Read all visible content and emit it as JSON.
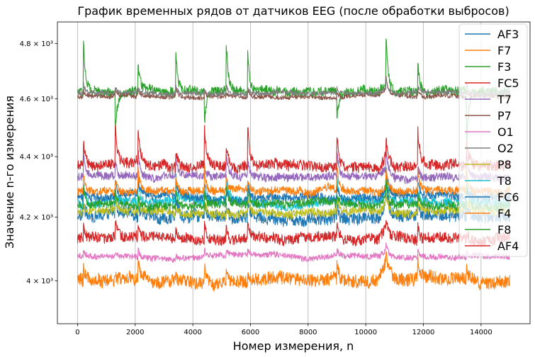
{
  "chart_data": {
    "type": "line",
    "title": "График временных рядов от датчиков EEG (после обработки выбросов)",
    "xlabel": "Номер измерения, n",
    "ylabel": "Значение n-го измерения",
    "xlim": [
      -700,
      15700
    ],
    "ylim": [
      3870,
      4880
    ],
    "y_scale": "log",
    "grid": "vertical",
    "legend_position": "top-right",
    "x_ticks": [
      0,
      2000,
      4000,
      6000,
      8000,
      10000,
      12000,
      14000
    ],
    "x_tick_labels": [
      "0",
      "2000",
      "4000",
      "6000",
      "8000",
      "10000",
      "12000",
      "14000"
    ],
    "y_ticks": [
      4000,
      4200,
      4400,
      4600,
      4800
    ],
    "y_tick_labels": [
      "4 × 10³",
      "4.2 × 10³",
      "4.4 × 10³",
      "4.6 × 10³",
      "4.8 × 10³"
    ],
    "n_points": 15000,
    "spike_positions": [
      200,
      1300,
      2100,
      3400,
      4400,
      5150,
      5900,
      9000,
      10700,
      11800,
      13500
    ],
    "series": [
      {
        "name": "AF3",
        "color": "#1f77b4",
        "baseline": 4205,
        "noise": 18,
        "spike": 80
      },
      {
        "name": "F7",
        "color": "#ff7f0e",
        "baseline": 4003,
        "noise": 18,
        "spike": 60
      },
      {
        "name": "F3",
        "color": "#2ca02c",
        "baseline": 4625,
        "noise": 15,
        "spike": 200
      },
      {
        "name": "FC5",
        "color": "#d62728",
        "baseline": 4130,
        "noise": 15,
        "spike": 60
      },
      {
        "name": "T7",
        "color": "#9467bd",
        "baseline": 4333,
        "noise": 12,
        "spike": 90
      },
      {
        "name": "P7",
        "color": "#8c564b",
        "baseline": 4608,
        "noise": 7,
        "spike": 40
      },
      {
        "name": "O1",
        "color": "#e377c2",
        "baseline": 4075,
        "noise": 8,
        "spike": 30
      },
      {
        "name": "O2",
        "color": "#7f7f7f",
        "baseline": 4620,
        "noise": 7,
        "spike": 35
      },
      {
        "name": "P8",
        "color": "#bcbd22",
        "baseline": 4215,
        "noise": 12,
        "spike": 60
      },
      {
        "name": "T8",
        "color": "#17becf",
        "baseline": 4248,
        "noise": 14,
        "spike": 80
      },
      {
        "name": "FC6",
        "color": "#1f77b4",
        "baseline": 4265,
        "noise": 12,
        "spike": 70
      },
      {
        "name": "F4",
        "color": "#ff7f0e",
        "baseline": 4283,
        "noise": 12,
        "spike": 80
      },
      {
        "name": "F8",
        "color": "#2ca02c",
        "baseline": 4240,
        "noise": 12,
        "spike": 70
      },
      {
        "name": "AF4",
        "color": "#d62728",
        "baseline": 4370,
        "noise": 16,
        "spike": 150
      }
    ]
  }
}
